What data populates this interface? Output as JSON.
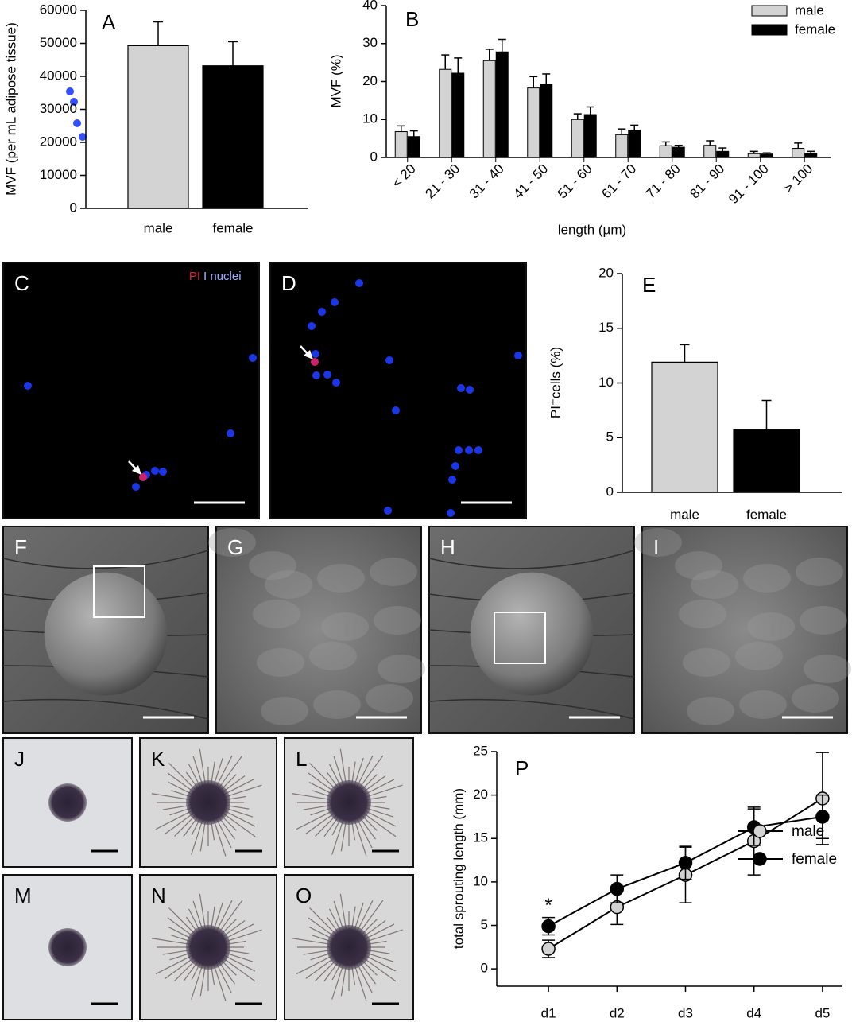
{
  "chart_data": [
    {
      "type": "bar",
      "panel": "A",
      "y_label": "MVF (per mL adipose tissue)",
      "categories": [
        "male",
        "female"
      ],
      "values": [
        49300,
        43200
      ],
      "errors": [
        7200,
        7300
      ],
      "colors": [
        "#d3d3d3",
        "#000000"
      ],
      "ylim": [
        0,
        60000
      ],
      "yticks": [
        0,
        10000,
        20000,
        30000,
        40000,
        50000,
        60000
      ]
    },
    {
      "type": "grouped_bar",
      "panel": "B",
      "y_label": "MVF (%)",
      "x_label": "length (µm)",
      "categories": [
        "< 20",
        "21 - 30",
        "31 - 40",
        "41 - 50",
        "51 - 60",
        "61 - 70",
        "71 - 80",
        "81 - 90",
        "91 - 100",
        "> 100"
      ],
      "series": [
        {
          "name": "male",
          "color": "#d3d3d3",
          "values": [
            6.8,
            23.2,
            25.5,
            18.3,
            10,
            6,
            3.1,
            3.2,
            1,
            2.4
          ],
          "errors": [
            1.5,
            3.8,
            3,
            3,
            1.5,
            1.5,
            1,
            1.2,
            0.6,
            1.4
          ]
        },
        {
          "name": "female",
          "color": "#000000",
          "values": [
            5.5,
            22.2,
            27.8,
            19.3,
            11.3,
            7.2,
            2.7,
            1.6,
            0.9,
            1.1
          ],
          "errors": [
            1.5,
            4,
            3.3,
            2.7,
            2,
            1.3,
            0.5,
            0.9,
            0.3,
            0.5
          ]
        }
      ],
      "ylim": [
        0,
        40
      ],
      "yticks": [
        0,
        10,
        20,
        30,
        40
      ],
      "legend": "upper right"
    },
    {
      "type": "bar",
      "panel": "E",
      "y_label": "PI⁺cells (%)",
      "categories": [
        "male",
        "female"
      ],
      "values": [
        11.9,
        5.7
      ],
      "errors": [
        1.6,
        2.7
      ],
      "colors": [
        "#d3d3d3",
        "#000000"
      ],
      "ylim": [
        0,
        20
      ],
      "yticks": [
        0,
        5,
        10,
        15,
        20
      ]
    },
    {
      "type": "line",
      "panel": "P",
      "y_label": "total sprouting length (mm)",
      "categories": [
        "d1",
        "d2",
        "d3",
        "d4",
        "d5"
      ],
      "series": [
        {
          "name": "male",
          "color": "#d3d3d3",
          "values": [
            2.3,
            7.1,
            10.8,
            14.7,
            19.6
          ],
          "errors": [
            1,
            2,
            3.2,
            3.9,
            5.3
          ]
        },
        {
          "name": "female",
          "color": "#000000",
          "values": [
            4.9,
            9.2,
            12.2,
            16.3,
            17.5
          ],
          "errors": [
            1,
            1.6,
            1.9,
            2.1,
            2.5
          ]
        }
      ],
      "ylim": [
        -2,
        25
      ],
      "yticks": [
        0,
        5,
        10,
        15,
        20,
        25
      ],
      "annotation": "*",
      "legend": "lower right"
    }
  ],
  "images": [
    {
      "label": "C",
      "stain": [
        "PI",
        "I nuclei"
      ]
    },
    {
      "label": "D"
    },
    {
      "label": "F"
    },
    {
      "label": "G"
    },
    {
      "label": "H"
    },
    {
      "label": "I"
    },
    {
      "label": "J"
    },
    {
      "label": "K"
    },
    {
      "label": "L"
    },
    {
      "label": "M"
    },
    {
      "label": "N"
    },
    {
      "label": "O"
    }
  ]
}
